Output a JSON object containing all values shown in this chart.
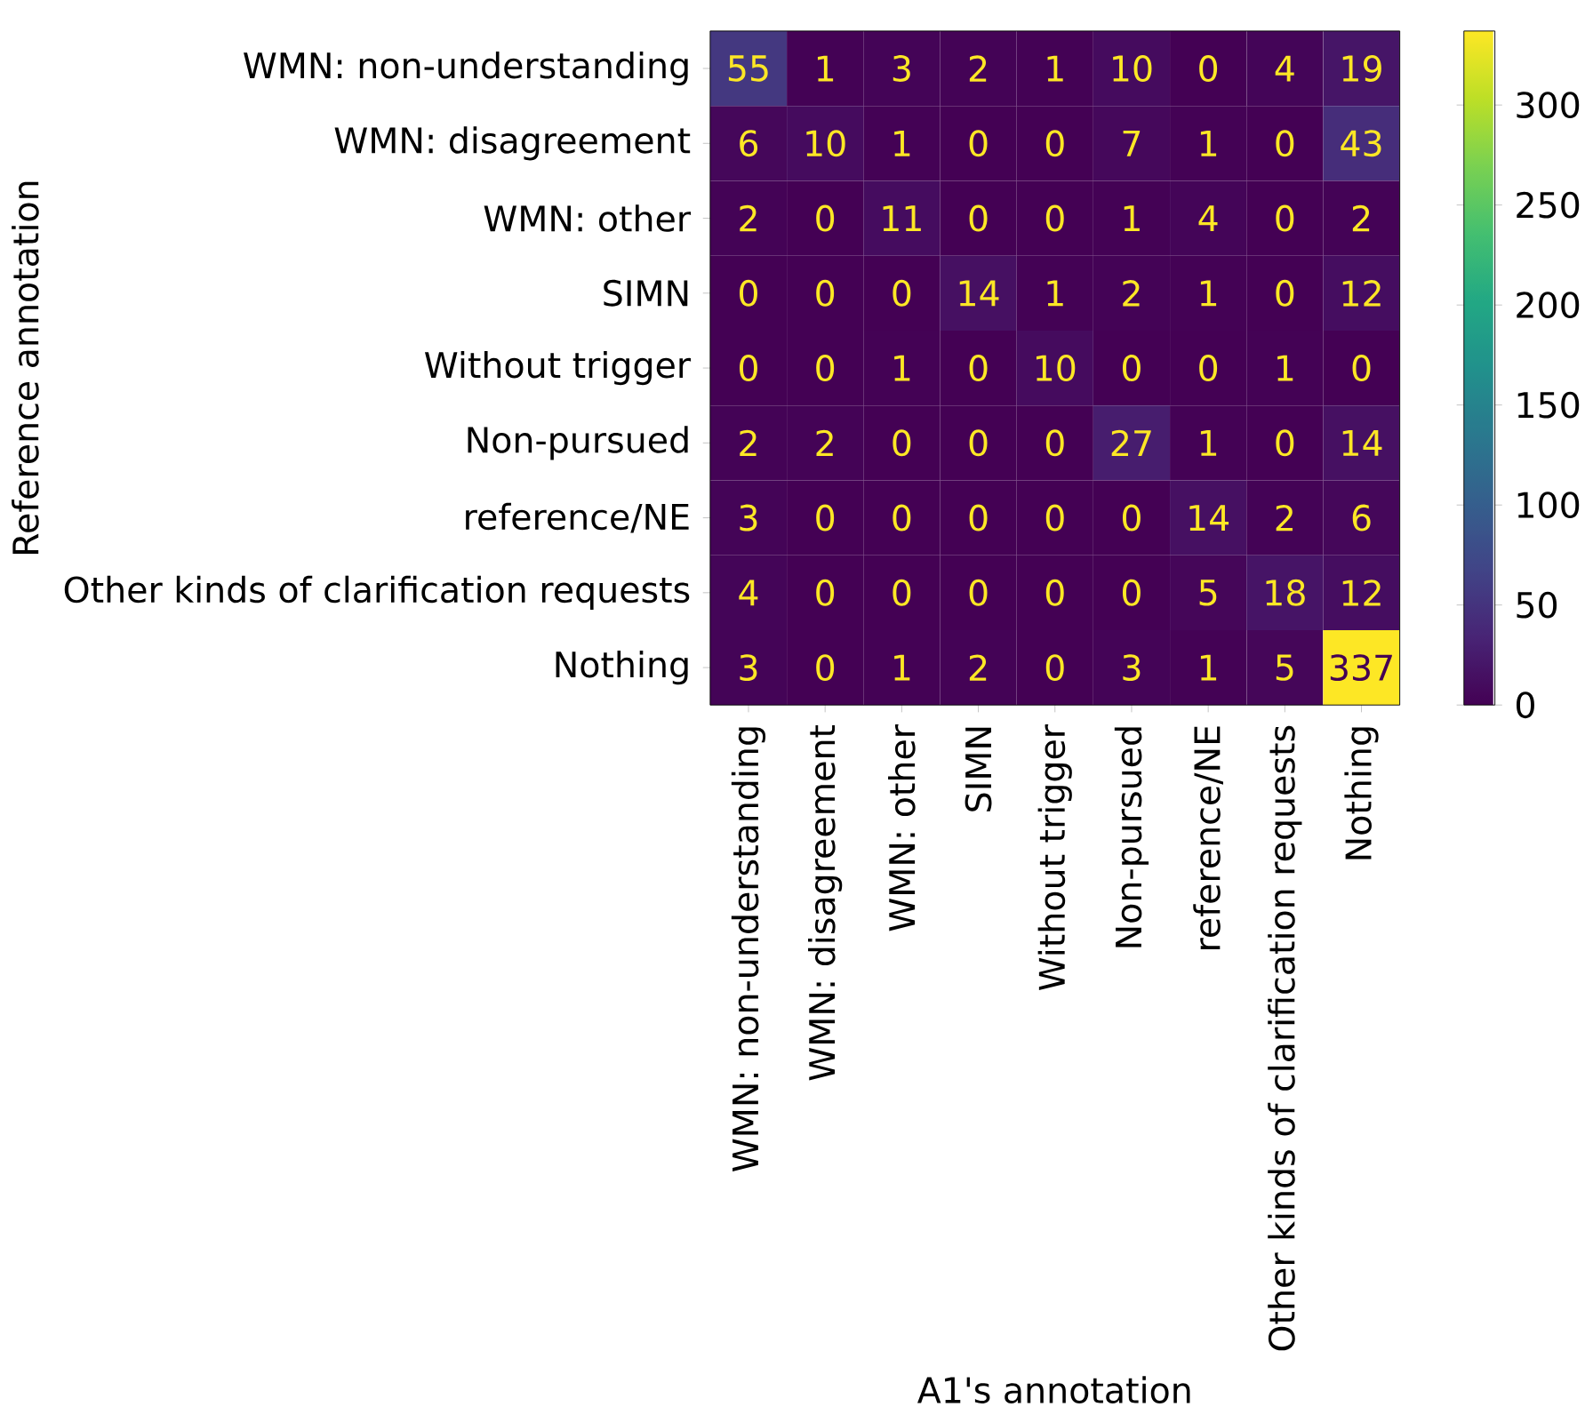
{
  "chart_data": {
    "type": "heatmap",
    "xlabel": "A1's annotation",
    "ylabel": "Reference annotation",
    "categories": [
      "WMN: non-understanding",
      "WMN: disagreement",
      "WMN: other",
      "SIMN",
      "Without trigger",
      "Non-pursued",
      "reference/NE",
      "Other kinds of clarification requests",
      "Nothing"
    ],
    "y_categories": [
      "WMN: non-understanding",
      "WMN: disagreement",
      "WMN: other",
      "SIMN",
      "Without trigger",
      "Non-pursued",
      "reference/NE",
      "Other kinds of clarification requests",
      "Nothing"
    ],
    "cells": [
      [
        55,
        1,
        3,
        2,
        1,
        10,
        0,
        4,
        19
      ],
      [
        6,
        10,
        1,
        0,
        0,
        7,
        1,
        0,
        43
      ],
      [
        2,
        0,
        11,
        0,
        0,
        1,
        4,
        0,
        2
      ],
      [
        0,
        0,
        0,
        14,
        1,
        2,
        1,
        0,
        12
      ],
      [
        0,
        0,
        1,
        0,
        10,
        0,
        0,
        1,
        0
      ],
      [
        2,
        2,
        0,
        0,
        0,
        27,
        1,
        0,
        14
      ],
      [
        3,
        0,
        0,
        0,
        0,
        0,
        14,
        2,
        6
      ],
      [
        4,
        0,
        0,
        0,
        0,
        0,
        5,
        18,
        12
      ],
      [
        3,
        0,
        1,
        2,
        0,
        3,
        1,
        5,
        337
      ]
    ],
    "clim": [
      0,
      337
    ],
    "cticks": [
      0,
      50,
      100,
      150,
      200,
      250,
      300
    ],
    "data_labels": true
  }
}
